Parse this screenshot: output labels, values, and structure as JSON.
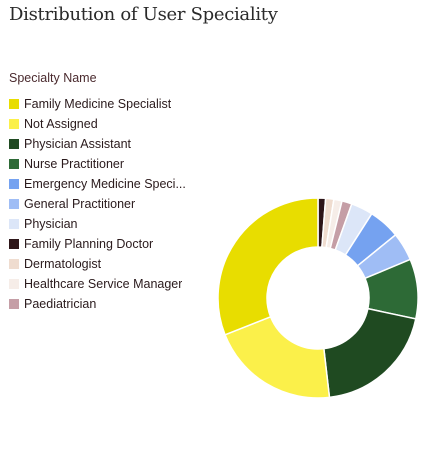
{
  "chart_data": {
    "type": "donut",
    "title": "Distribution of User Speciality",
    "legend_title": "Specialty Name",
    "legend_position": "left",
    "series": [
      {
        "name": "Family Medicine Specialist",
        "label": "Family Medicine Specialist",
        "value": 30.5,
        "color": "#e8dd00"
      },
      {
        "name": "Not Assigned",
        "label": "Not Assigned",
        "value": 20.5,
        "color": "#fbf04a"
      },
      {
        "name": "Physician Assistant",
        "label": "Physician Assistant",
        "value": 19.5,
        "color": "#1f4a21"
      },
      {
        "name": "Nurse Practitioner",
        "label": "Nurse Practitioner",
        "value": 9.5,
        "color": "#2d6a36"
      },
      {
        "name": "Emergency Medicine Specialist",
        "label": "Emergency Medicine Speci...",
        "value": 5.0,
        "color": "#75a2f0"
      },
      {
        "name": "General Practitioner",
        "label": "General Practitioner",
        "value": 4.5,
        "color": "#9fbdf5"
      },
      {
        "name": "Physician",
        "label": "Physician",
        "value": 3.5,
        "color": "#dce6f8"
      },
      {
        "name": "Family Planning Doctor",
        "label": "Family Planning Doctor",
        "value": 1.2,
        "color": "#2d1518"
      },
      {
        "name": "Dermatologist",
        "label": "Dermatologist",
        "value": 1.3,
        "color": "#efdccf"
      },
      {
        "name": "Healthcare Service Manager",
        "label": "Healthcare Service Manager",
        "value": 1.3,
        "color": "#f6ede8"
      },
      {
        "name": "Paediatrician",
        "label": "Paediatrician",
        "value": 1.6,
        "color": "#c59ea6"
      }
    ]
  },
  "slice_order": [
    7,
    8,
    9,
    10,
    6,
    4,
    5,
    3,
    2,
    1,
    0
  ]
}
